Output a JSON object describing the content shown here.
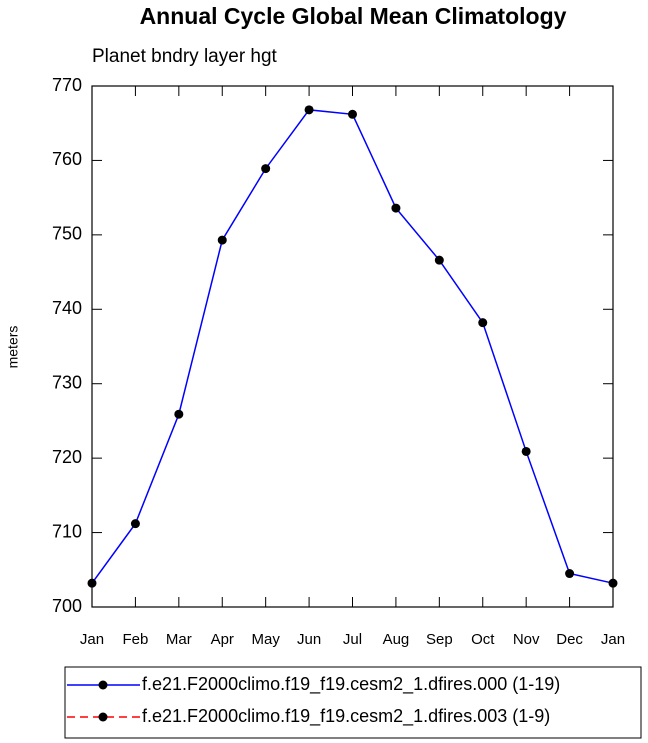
{
  "chart_data": {
    "type": "line",
    "title": "Annual Cycle Global Mean Climatology",
    "subtitle": "Planet bndry layer hgt",
    "y_label": "meters",
    "categories": [
      "Jan",
      "Feb",
      "Mar",
      "Apr",
      "May",
      "Jun",
      "Jul",
      "Aug",
      "Sep",
      "Oct",
      "Nov",
      "Dec",
      "Jan"
    ],
    "series": [
      {
        "name": "f.e21.F2000climo.f19_f19.cesm2_1.dfires.000 (1-19)",
        "color": "#0000ff",
        "dash": false,
        "values": [
          703.2,
          711.2,
          725.9,
          749.3,
          758.9,
          766.8,
          766.2,
          753.6,
          746.6,
          738.2,
          720.9,
          704.5,
          703.2
        ]
      },
      {
        "name": "f.e21.F2000climo.f19_f19.cesm2_1.dfires.003 (1-9)",
        "color": "#ff0000",
        "dash": true,
        "values": [
          null,
          null,
          null,
          null,
          null,
          null,
          null,
          null,
          null,
          null,
          null,
          null,
          null
        ]
      }
    ],
    "ylim": [
      700,
      770
    ],
    "yticks": [
      700,
      710,
      720,
      730,
      740,
      750,
      760,
      770
    ],
    "grid": false,
    "legend": "bottom"
  }
}
